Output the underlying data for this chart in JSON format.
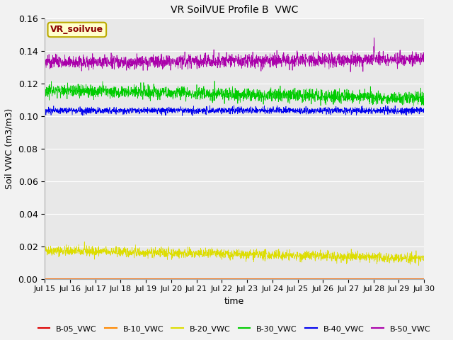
{
  "title": "VR SoilVUE Profile B  VWC",
  "ylabel": "Soil VWC (m3/m3)",
  "xlabel": "time",
  "ylim": [
    0.0,
    0.16
  ],
  "xlim_days": [
    15,
    30
  ],
  "plot_bg_color": "#e8e8e8",
  "fig_bg_color": "#f2f2f2",
  "annotation_label": "VR_soilvue",
  "annotation_text_color": "#8b0000",
  "annotation_bg": "#ffffcc",
  "annotation_border": "#bbaa00",
  "series": [
    {
      "label": "B-05_VWC",
      "color": "#dd0000",
      "base": 0.0,
      "noise": 0.0,
      "trend": 0.0
    },
    {
      "label": "B-10_VWC",
      "color": "#ff8800",
      "base": 0.0,
      "noise": 0.0,
      "trend": 0.0
    },
    {
      "label": "B-20_VWC",
      "color": "#dddd00",
      "base": 0.0175,
      "noise": 0.0015,
      "trend": -0.005
    },
    {
      "label": "B-30_VWC",
      "color": "#00cc00",
      "base": 0.116,
      "noise": 0.002,
      "trend": -0.005
    },
    {
      "label": "B-40_VWC",
      "color": "#0000ee",
      "base": 0.1035,
      "noise": 0.001,
      "trend": 0.0
    },
    {
      "label": "B-50_VWC",
      "color": "#aa00aa",
      "base": 0.133,
      "noise": 0.002,
      "trend": 0.002
    }
  ],
  "n_points": 2000,
  "random_seed": 42,
  "legend_colors": [
    "#dd0000",
    "#ff8800",
    "#dddd00",
    "#00cc00",
    "#0000ee",
    "#aa00aa"
  ],
  "legend_labels": [
    "B-05_VWC",
    "B-10_VWC",
    "B-20_VWC",
    "B-30_VWC",
    "B-40_VWC",
    "B-50_VWC"
  ]
}
